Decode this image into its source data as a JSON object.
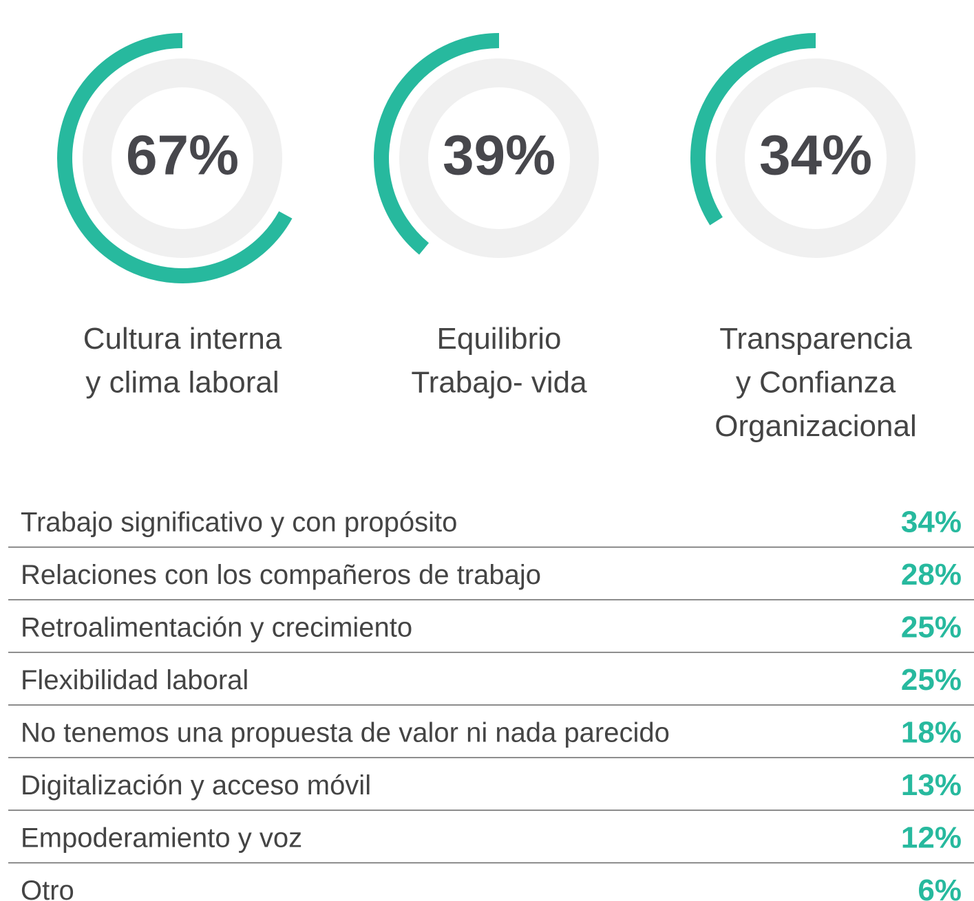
{
  "chart_data": {
    "type": "radial-gauge",
    "categories": [
      "Cultura interna\ny clima laboral",
      "Equilibrio\nTrabajo- vida",
      "Transparencia\ny Confianza\nOrganizacional"
    ],
    "values": [
      67,
      39,
      34
    ],
    "value_labels": [
      "67%",
      "39%",
      "34%"
    ],
    "color": "#27b99e"
  },
  "table": {
    "rows": [
      [
        "Trabajo significativo y con propósito",
        "34%"
      ],
      [
        "Relaciones con los compañeros de trabajo",
        "28%"
      ],
      [
        "Retroalimentación y crecimiento",
        "25%"
      ],
      [
        "Flexibilidad laboral",
        "25%"
      ],
      [
        "No tenemos una propuesta de valor ni nada parecido",
        "18%"
      ],
      [
        "Digitalización y acceso móvil",
        "13%"
      ],
      [
        "Empoderamiento y voz",
        "12%"
      ],
      [
        "Otro",
        "6%"
      ]
    ]
  }
}
